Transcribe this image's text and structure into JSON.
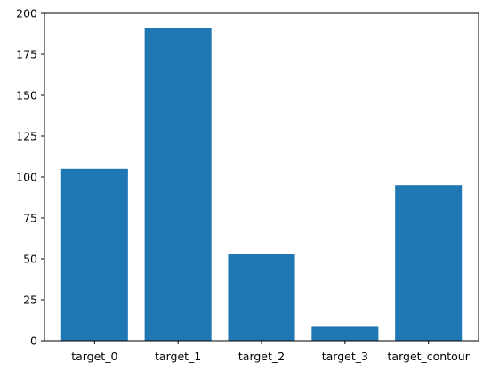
{
  "chart_data": {
    "type": "bar",
    "categories": [
      "target_0",
      "target_1",
      "target_2",
      "target_3",
      "target_contour"
    ],
    "values": [
      105,
      191,
      53,
      9,
      95
    ],
    "ylim": [
      0,
      200
    ],
    "yticks": [
      0,
      25,
      50,
      75,
      100,
      125,
      150,
      175,
      200
    ],
    "grid": false,
    "bar_color": "#1f77b4"
  }
}
